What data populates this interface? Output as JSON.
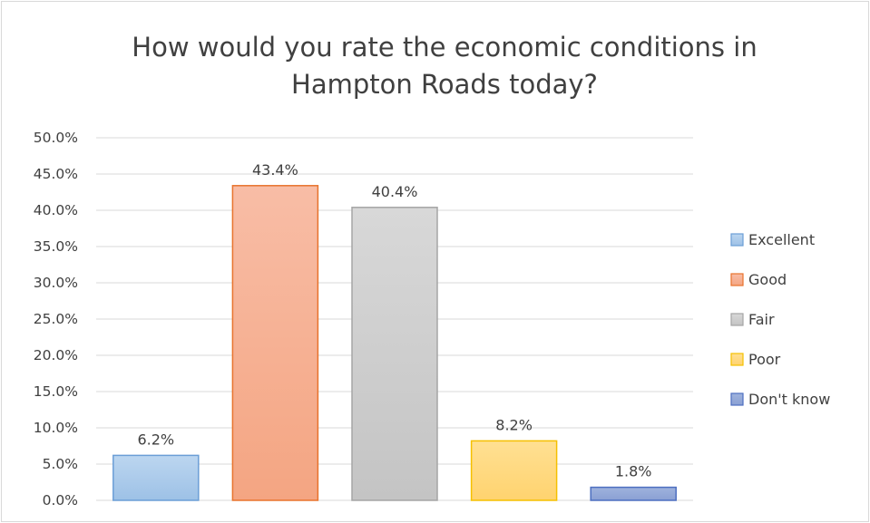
{
  "chart_data": {
    "type": "bar",
    "title_lines": [
      "How would you rate the economic conditions in",
      "Hampton Roads today?"
    ],
    "categories": [
      "Excellent",
      "Good",
      "Fair",
      "Poor",
      "Don't know"
    ],
    "values": [
      6.2,
      43.4,
      40.4,
      8.2,
      1.8
    ],
    "data_labels": [
      "6.2%",
      "43.4%",
      "40.4%",
      "8.2%",
      "1.8%"
    ],
    "ylim": [
      0,
      50
    ],
    "y_ticks": [
      0,
      5,
      10,
      15,
      20,
      25,
      30,
      35,
      40,
      45,
      50
    ],
    "y_tick_labels": [
      "0.0%",
      "5.0%",
      "10.0%",
      "15.0%",
      "20.0%",
      "25.0%",
      "30.0%",
      "35.0%",
      "40.0%",
      "45.0%",
      "50.0%"
    ],
    "grid": true,
    "legend": {
      "position": "right",
      "entries": [
        "Excellent",
        "Good",
        "Fair",
        "Poor",
        "Don't know"
      ]
    },
    "colors": {
      "Excellent": {
        "fill_top": "#bcd6f0",
        "fill_bottom": "#9dc1e6",
        "stroke": "#6b9ed6"
      },
      "Good": {
        "fill_top": "#f8bda6",
        "fill_bottom": "#f4a582",
        "stroke": "#e8732d"
      },
      "Fair": {
        "fill_top": "#d8d8d8",
        "fill_bottom": "#c4c4c4",
        "stroke": "#a5a5a5"
      },
      "Poor": {
        "fill_top": "#ffe093",
        "fill_bottom": "#ffd36f",
        "stroke": "#f5c000"
      },
      "Don't know": {
        "fill_top": "#9fb3dd",
        "fill_bottom": "#8aa0d3",
        "stroke": "#4d6fc0"
      }
    }
  }
}
